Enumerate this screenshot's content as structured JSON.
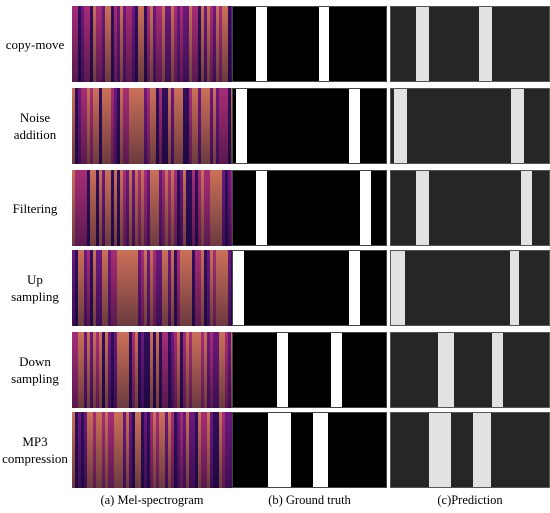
{
  "rows": [
    {
      "label_lines": [
        "copy-move"
      ],
      "gt_bars": [
        [
          0.15,
          0.22
        ],
        [
          0.56,
          0.63
        ]
      ],
      "pred_bars": [
        [
          0.16,
          0.24
        ],
        [
          0.56,
          0.64
        ]
      ]
    },
    {
      "label_lines": [
        "Noise",
        "addition"
      ],
      "gt_bars": [
        [
          0.02,
          0.09
        ],
        [
          0.76,
          0.83
        ]
      ],
      "pred_bars": [
        [
          0.02,
          0.1
        ],
        [
          0.76,
          0.84
        ]
      ]
    },
    {
      "label_lines": [
        "Filtering"
      ],
      "gt_bars": [
        [
          0.15,
          0.22
        ],
        [
          0.83,
          0.9
        ]
      ],
      "pred_bars": [
        [
          0.16,
          0.24
        ],
        [
          0.82,
          0.89
        ]
      ]
    },
    {
      "label_lines": [
        "Up",
        "sampling"
      ],
      "gt_bars": [
        [
          0.0,
          0.07
        ],
        [
          0.76,
          0.83
        ]
      ],
      "pred_bars": [
        [
          0.0,
          0.09
        ],
        [
          0.75,
          0.81
        ]
      ]
    },
    {
      "label_lines": [
        "Down",
        "sampling"
      ],
      "gt_bars": [
        [
          0.29,
          0.36
        ],
        [
          0.64,
          0.71
        ]
      ],
      "pred_bars": [
        [
          0.3,
          0.4
        ],
        [
          0.64,
          0.71
        ]
      ]
    },
    {
      "label_lines": [
        "MP3",
        "compression"
      ],
      "gt_bars": [
        [
          0.23,
          0.38
        ],
        [
          0.52,
          0.62
        ]
      ],
      "pred_bars": [
        [
          0.24,
          0.38
        ],
        [
          0.52,
          0.63
        ]
      ]
    }
  ],
  "captions": {
    "a": "(a)  Mel-spectrogram",
    "b": "(b) Ground truth",
    "c": "(c)Prediction"
  },
  "colors": {
    "spectrogram_base": "#3b0f6b",
    "ground_truth_background": "#000000",
    "ground_truth_mask": "#ffffff",
    "prediction_background": "#262626",
    "prediction_mask": "#e2e2e2"
  }
}
